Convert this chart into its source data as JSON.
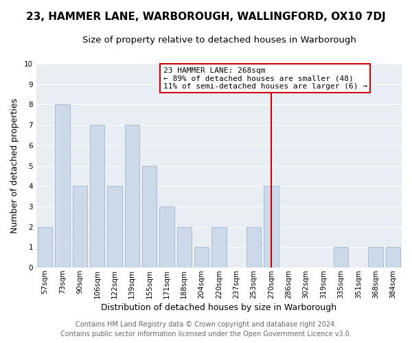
{
  "title": "23, HAMMER LANE, WARBOROUGH, WALLINGFORD, OX10 7DJ",
  "subtitle": "Size of property relative to detached houses in Warborough",
  "xlabel": "Distribution of detached houses by size in Warborough",
  "ylabel": "Number of detached properties",
  "bar_labels": [
    "57sqm",
    "73sqm",
    "90sqm",
    "106sqm",
    "122sqm",
    "139sqm",
    "155sqm",
    "171sqm",
    "188sqm",
    "204sqm",
    "220sqm",
    "237sqm",
    "253sqm",
    "270sqm",
    "286sqm",
    "302sqm",
    "319sqm",
    "335sqm",
    "351sqm",
    "368sqm",
    "384sqm"
  ],
  "bar_values": [
    2,
    8,
    4,
    7,
    4,
    7,
    5,
    3,
    2,
    1,
    2,
    0,
    2,
    4,
    0,
    0,
    0,
    1,
    0,
    1,
    1
  ],
  "bar_color": "#ccd9e8",
  "bar_edgecolor": "#aabbd0",
  "marker_index": 13,
  "marker_line_color": "#cc0000",
  "ylim": [
    0,
    10
  ],
  "yticks": [
    0,
    1,
    2,
    3,
    4,
    5,
    6,
    7,
    8,
    9,
    10
  ],
  "annotation_title": "23 HAMMER LANE: 268sqm",
  "annotation_line1": "← 89% of detached houses are smaller (48)",
  "annotation_line2": "11% of semi-detached houses are larger (6) →",
  "annotation_box_facecolor": "#ffffff",
  "annotation_box_edgecolor": "#cc0000",
  "footer_line1": "Contains HM Land Registry data © Crown copyright and database right 2024.",
  "footer_line2": "Contains public sector information licensed under the Open Government Licence v3.0.",
  "plot_bg_color": "#e8eef4",
  "fig_bg_color": "#ffffff",
  "grid_color": "#ffffff",
  "title_fontsize": 11,
  "subtitle_fontsize": 9.5,
  "tick_fontsize": 7.5,
  "label_fontsize": 9,
  "footer_fontsize": 7,
  "annotation_fontsize": 8
}
